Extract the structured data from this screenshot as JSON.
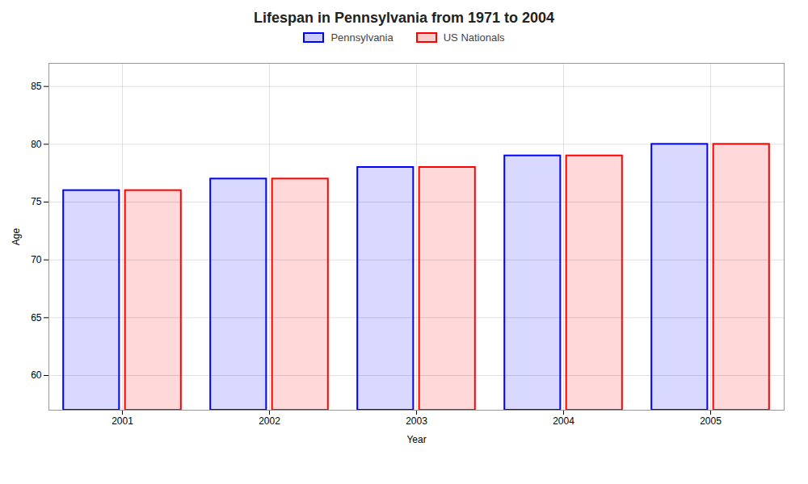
{
  "chart_data": {
    "type": "bar",
    "title": "Lifespan in Pennsylvania from 1971 to 2004",
    "xlabel": "Year",
    "ylabel": "Age",
    "categories": [
      "2001",
      "2002",
      "2003",
      "2004",
      "2005"
    ],
    "series": [
      {
        "name": "Pennsylvania",
        "color": "#0000ff",
        "values": [
          76,
          77,
          78,
          79,
          80
        ]
      },
      {
        "name": "US Nationals",
        "color": "#ff0000",
        "values": [
          76,
          77,
          78,
          79,
          80
        ]
      }
    ],
    "ylim": [
      57,
      87
    ],
    "yticks": [
      60,
      65,
      70,
      75,
      80,
      85
    ],
    "grid": true,
    "legend": "top"
  }
}
